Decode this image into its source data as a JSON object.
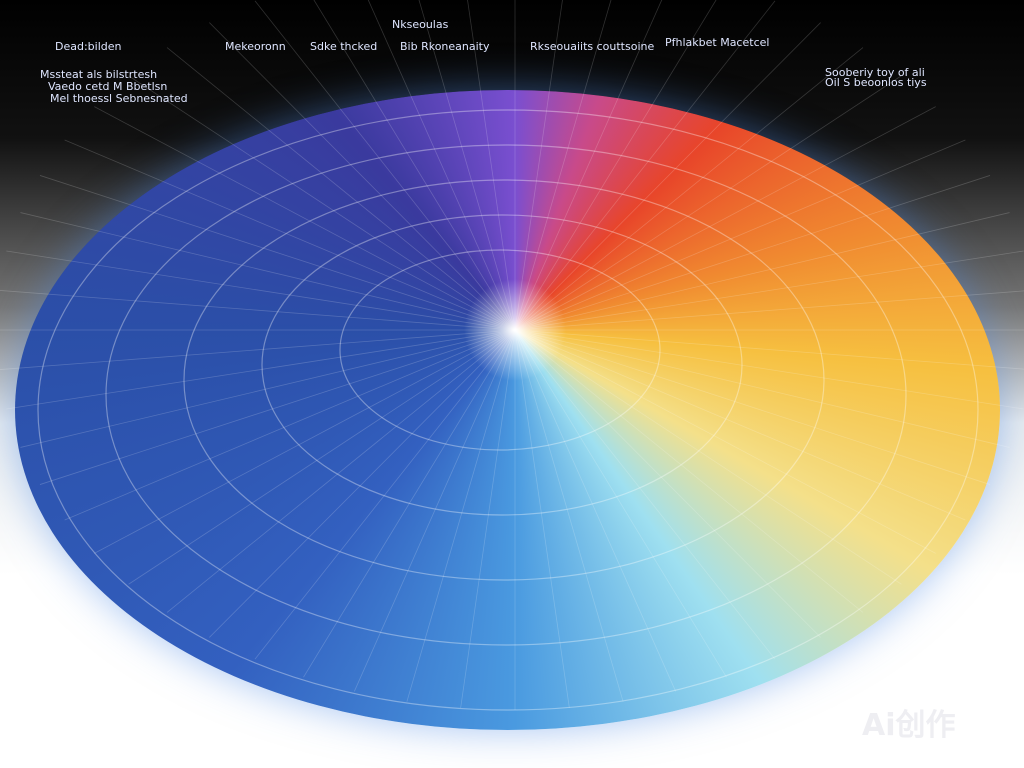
{
  "header": {
    "labels": [
      "Dead:bilden",
      "Mekeoronn",
      "Sdke thcked",
      "Bib Rkoneanaity",
      "Rkseouaiits couttsoine",
      "Pfhlakbet Macetcel",
      "Nkseoulas",
      "Mssteat als bilstrtesh",
      "Vaedo cetd M Bbetlsn",
      "Mel thoessl Sebnesnated",
      "Sooberiy toy of ali",
      "Oil S beoonlos tiys"
    ]
  },
  "watermark": "Ai创作"
}
